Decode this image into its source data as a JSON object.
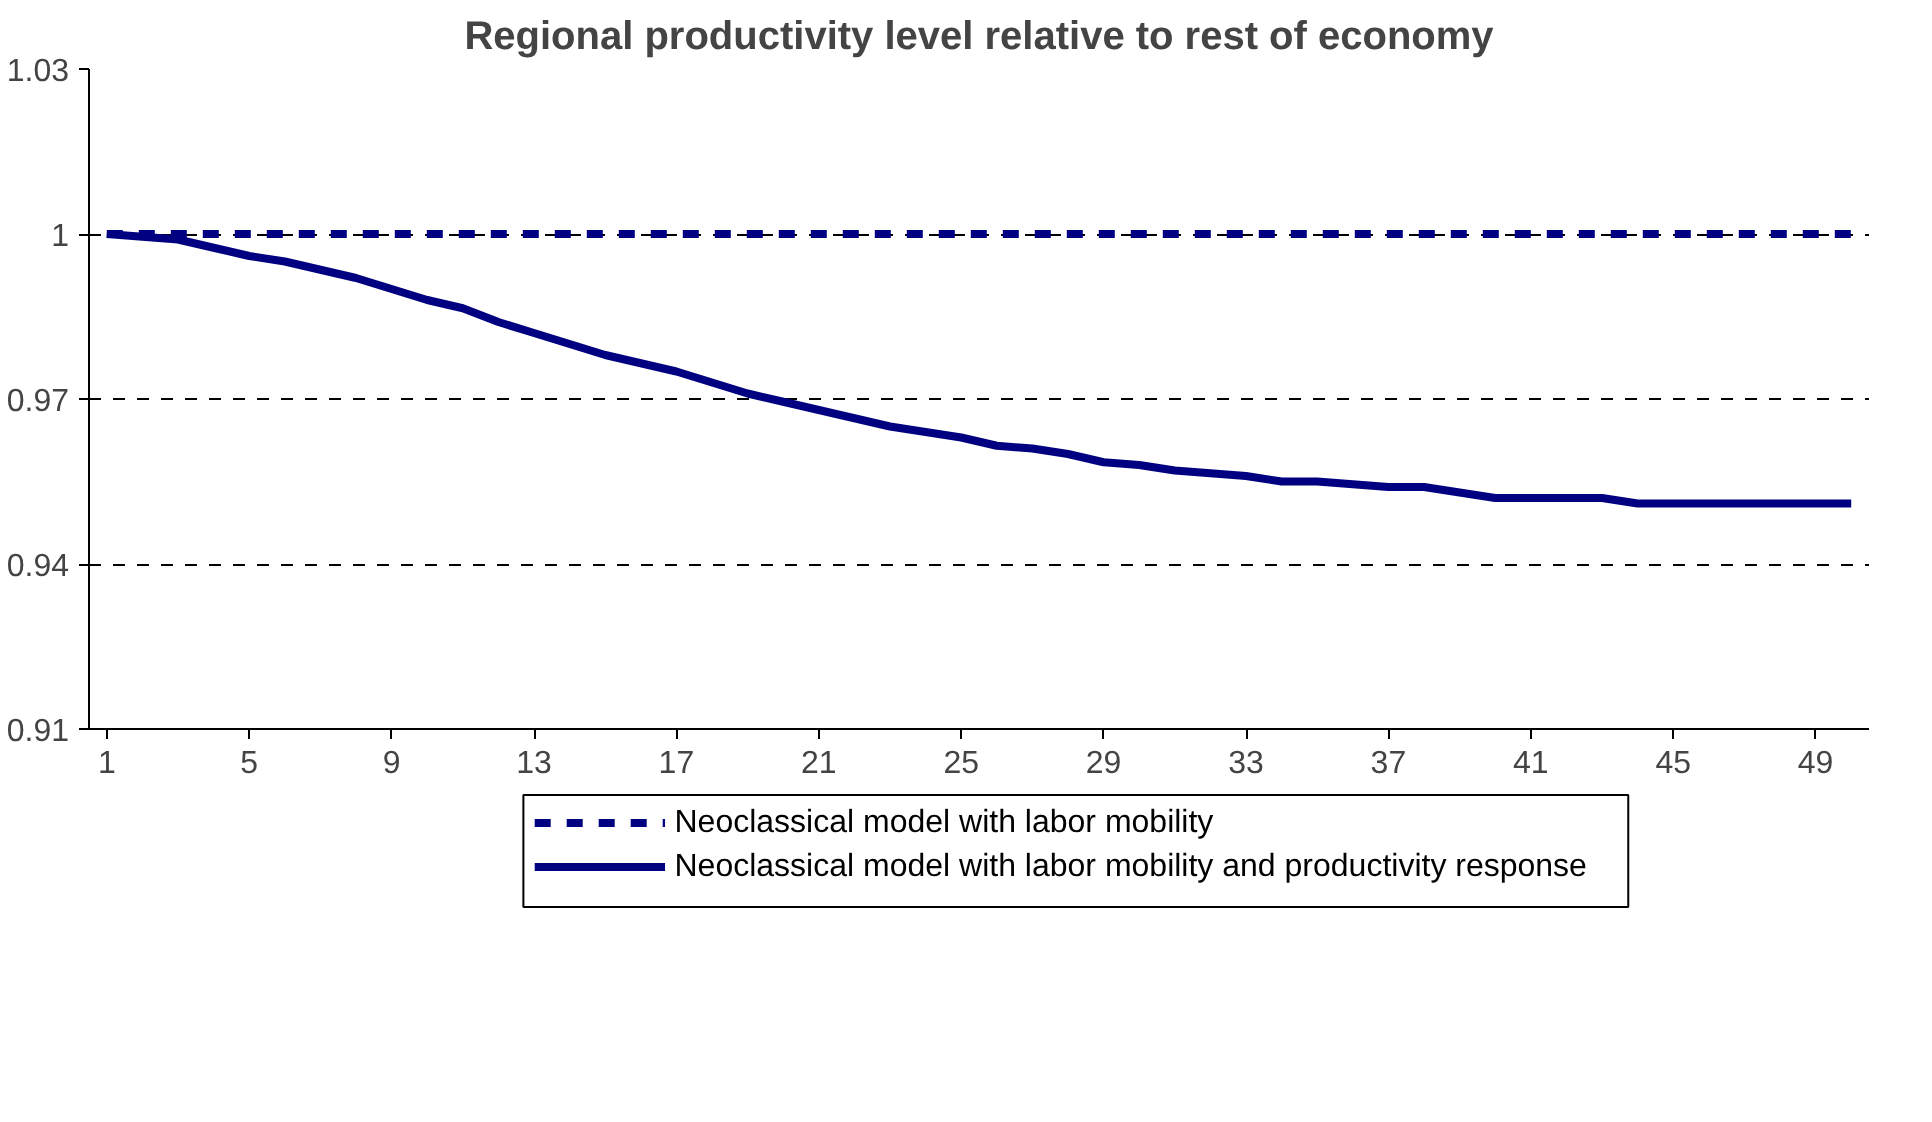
{
  "chart_data": {
    "type": "line",
    "title": "Regional productivity level relative to rest of economy",
    "x": [
      1,
      2,
      3,
      4,
      5,
      6,
      7,
      8,
      9,
      10,
      11,
      12,
      13,
      14,
      15,
      16,
      17,
      18,
      19,
      20,
      21,
      22,
      23,
      24,
      25,
      26,
      27,
      28,
      29,
      30,
      31,
      32,
      33,
      34,
      35,
      36,
      37,
      38,
      39,
      40,
      41,
      42,
      43,
      44,
      45,
      46,
      47,
      48,
      49,
      50
    ],
    "series": [
      {
        "name": "Neoclassical model with labor mobility",
        "color": "#000080",
        "line_style": "dashed",
        "values": [
          1,
          1,
          1,
          1,
          1,
          1,
          1,
          1,
          1,
          1,
          1,
          1,
          1,
          1,
          1,
          1,
          1,
          1,
          1,
          1,
          1,
          1,
          1,
          1,
          1,
          1,
          1,
          1,
          1,
          1,
          1,
          1,
          1,
          1,
          1,
          1,
          1,
          1,
          1,
          1,
          1,
          1,
          1,
          1,
          1,
          1,
          1,
          1,
          1,
          1
        ]
      },
      {
        "name": "Neoclassical model with labor mobility and productivity response",
        "color": "#000080",
        "line_style": "solid",
        "values": [
          1.0,
          0.9995,
          0.999,
          0.9975,
          0.996,
          0.995,
          0.9935,
          0.992,
          0.99,
          0.988,
          0.9865,
          0.984,
          0.982,
          0.98,
          0.978,
          0.9765,
          0.975,
          0.973,
          0.971,
          0.9695,
          0.968,
          0.9665,
          0.965,
          0.964,
          0.963,
          0.9615,
          0.961,
          0.96,
          0.9585,
          0.958,
          0.957,
          0.9565,
          0.956,
          0.955,
          0.955,
          0.9545,
          0.954,
          0.954,
          0.953,
          0.952,
          0.952,
          0.952,
          0.952,
          0.951,
          0.951,
          0.951,
          0.951,
          0.951,
          0.951,
          0.951
        ]
      }
    ],
    "xlim": [
      0.5,
      50.5
    ],
    "xticks": [
      1,
      5,
      9,
      13,
      17,
      21,
      25,
      29,
      33,
      37,
      41,
      45,
      49
    ],
    "ylim": [
      0.91,
      1.03
    ],
    "yticks": [
      0.91,
      0.94,
      0.97,
      1,
      1.03
    ],
    "grid": "y",
    "legend": "bottom"
  }
}
